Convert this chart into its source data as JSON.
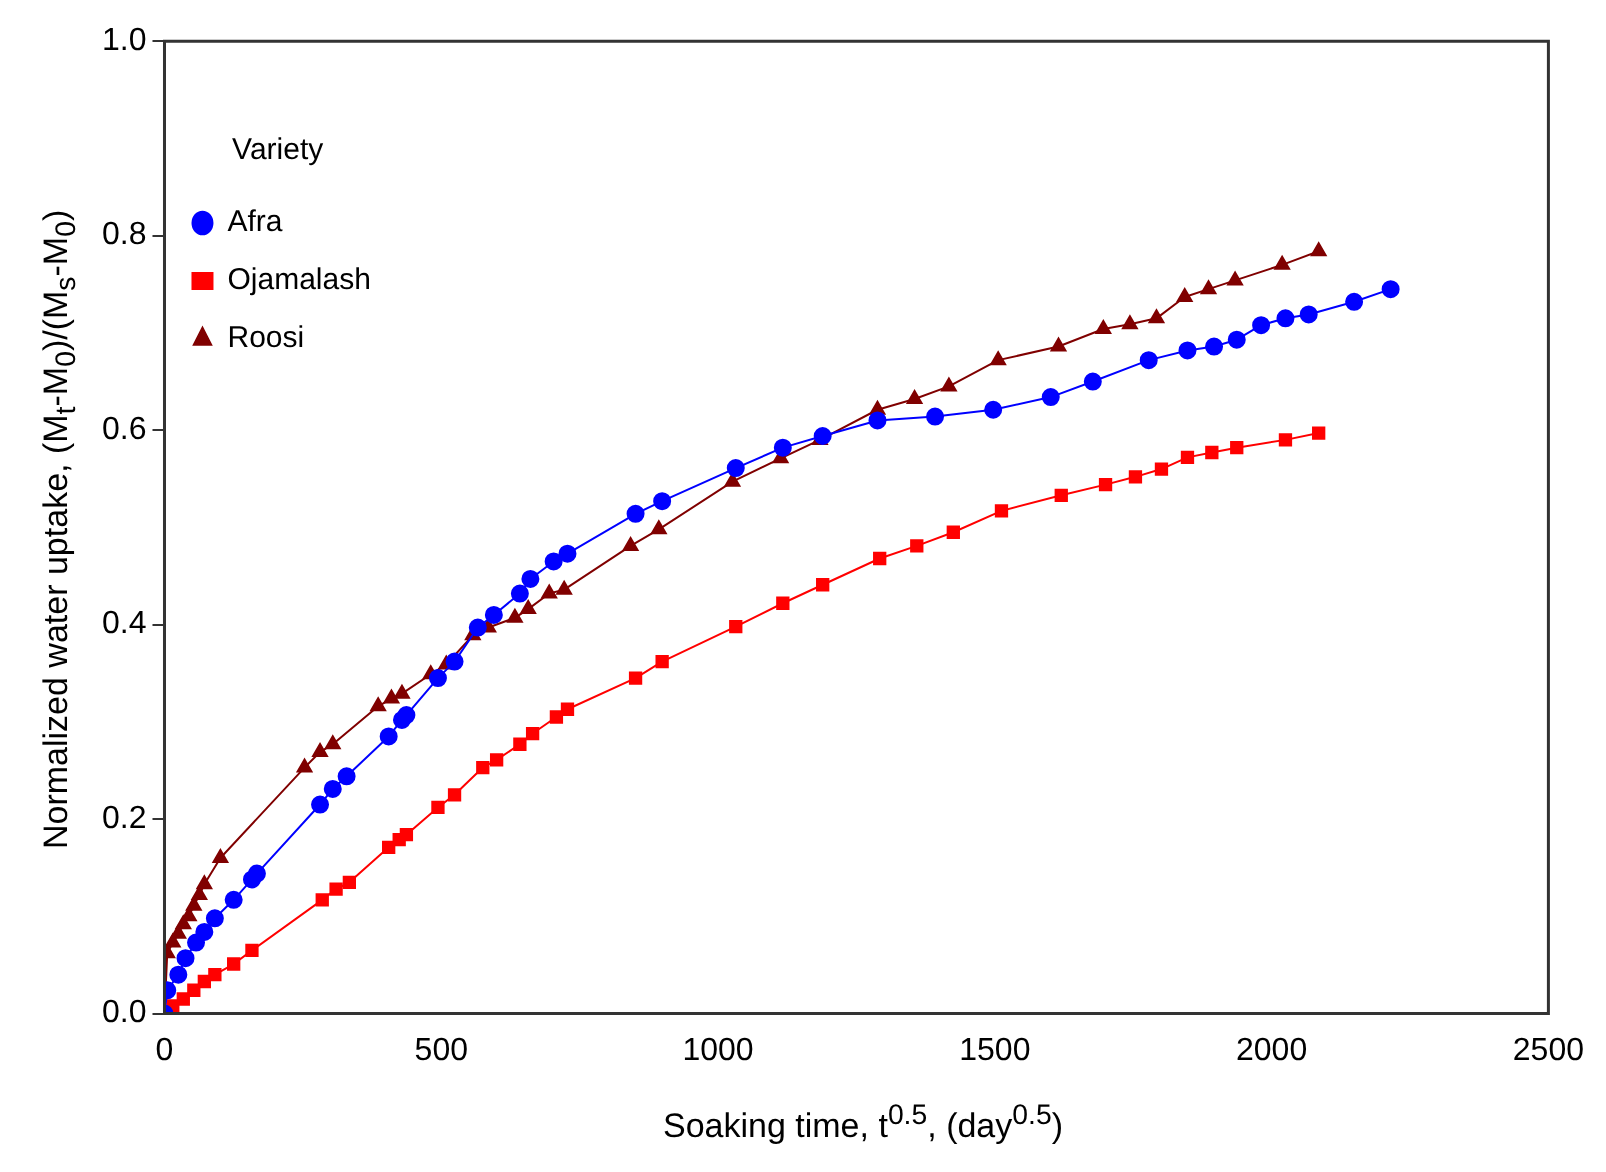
{
  "chart_data": {
    "type": "line",
    "xlabel": "Soaking time, t$^{0.5}$, (day$^{0.5}$)",
    "ylabel": "Normalized water uptake, (M$_{t}$-M$_{0}$)/(M$_{s}$-M$_{0}$)",
    "legend_title": "Variety",
    "legend": "top left",
    "grid": false,
    "line_style": "solid",
    "xlim": [
      0,
      2500
    ],
    "xticks": [
      0,
      500,
      1000,
      1500,
      2000,
      2500
    ],
    "ylim": [
      0,
      1
    ],
    "yticks": [
      {
        "value": 0,
        "label": "0.0"
      },
      {
        "value": 0.2,
        "label": "0.2"
      },
      {
        "value": 0.4,
        "label": "0.4"
      },
      {
        "value": 0.6,
        "label": "0.6"
      },
      {
        "value": 0.8,
        "label": "0.8"
      },
      {
        "value": 1,
        "label": "1.0"
      }
    ],
    "series": [
      {
        "name": "Afra",
        "color": "#0000ff",
        "marker": "circle",
        "x": [
          0,
          5,
          25,
          38,
          57,
          72,
          91,
          125,
          158,
          167,
          281,
          304,
          329,
          405,
          429,
          437,
          494,
          524,
          566,
          595,
          642,
          661,
          703,
          728,
          851,
          899,
          1032,
          1117,
          1189,
          1288,
          1392,
          1497,
          1601,
          1677,
          1778,
          1848,
          1896,
          1937,
          1981,
          2025,
          2067,
          2149,
          2215
        ],
        "values": [
          0,
          0.024,
          0.04,
          0.057,
          0.073,
          0.084,
          0.098,
          0.117,
          0.138,
          0.144,
          0.215,
          0.231,
          0.244,
          0.285,
          0.302,
          0.307,
          0.345,
          0.362,
          0.397,
          0.41,
          0.432,
          0.447,
          0.465,
          0.473,
          0.514,
          0.527,
          0.561,
          0.582,
          0.594,
          0.61,
          0.614,
          0.621,
          0.634,
          0.65,
          0.672,
          0.682,
          0.686,
          0.693,
          0.708,
          0.715,
          0.719,
          0.732,
          0.745
        ]
      },
      {
        "name": "Ojamalash",
        "color": "#ff0000",
        "marker": "square",
        "x": [
          0,
          15,
          34,
          53,
          72,
          91,
          125,
          158,
          285,
          310,
          334,
          405,
          424,
          437,
          494,
          524,
          575,
          600,
          642,
          665,
          708,
          728,
          851,
          899,
          1032,
          1117,
          1189,
          1292,
          1359,
          1425,
          1512,
          1620,
          1700,
          1754,
          1801,
          1848,
          1892,
          1937,
          2025,
          2085
        ],
        "values": [
          0,
          0.008,
          0.015,
          0.024,
          0.033,
          0.04,
          0.051,
          0.065,
          0.117,
          0.128,
          0.135,
          0.171,
          0.179,
          0.184,
          0.212,
          0.225,
          0.253,
          0.261,
          0.277,
          0.288,
          0.305,
          0.313,
          0.345,
          0.362,
          0.398,
          0.422,
          0.441,
          0.468,
          0.481,
          0.495,
          0.517,
          0.533,
          0.544,
          0.552,
          0.56,
          0.572,
          0.577,
          0.582,
          0.59,
          0.597
        ]
      },
      {
        "name": "Roosi",
        "color": "#800000",
        "marker": "triangle",
        "x": [
          0,
          5,
          15,
          25,
          34,
          44,
          53,
          63,
          72,
          101,
          253,
          281,
          304,
          386,
          410,
          429,
          481,
          509,
          557,
          585,
          633,
          657,
          695,
          722,
          842,
          893,
          1026,
          1113,
          1184,
          1288,
          1355,
          1417,
          1506,
          1615,
          1696,
          1744,
          1792,
          1843,
          1886,
          1934,
          2019,
          2085
        ],
        "values": [
          0,
          0.062,
          0.073,
          0.082,
          0.092,
          0.1,
          0.111,
          0.122,
          0.133,
          0.16,
          0.253,
          0.269,
          0.277,
          0.316,
          0.324,
          0.329,
          0.349,
          0.359,
          0.389,
          0.397,
          0.407,
          0.416,
          0.432,
          0.436,
          0.481,
          0.498,
          0.547,
          0.571,
          0.59,
          0.621,
          0.632,
          0.645,
          0.672,
          0.686,
          0.704,
          0.709,
          0.715,
          0.737,
          0.745,
          0.754,
          0.77,
          0.784
        ]
      }
    ]
  }
}
